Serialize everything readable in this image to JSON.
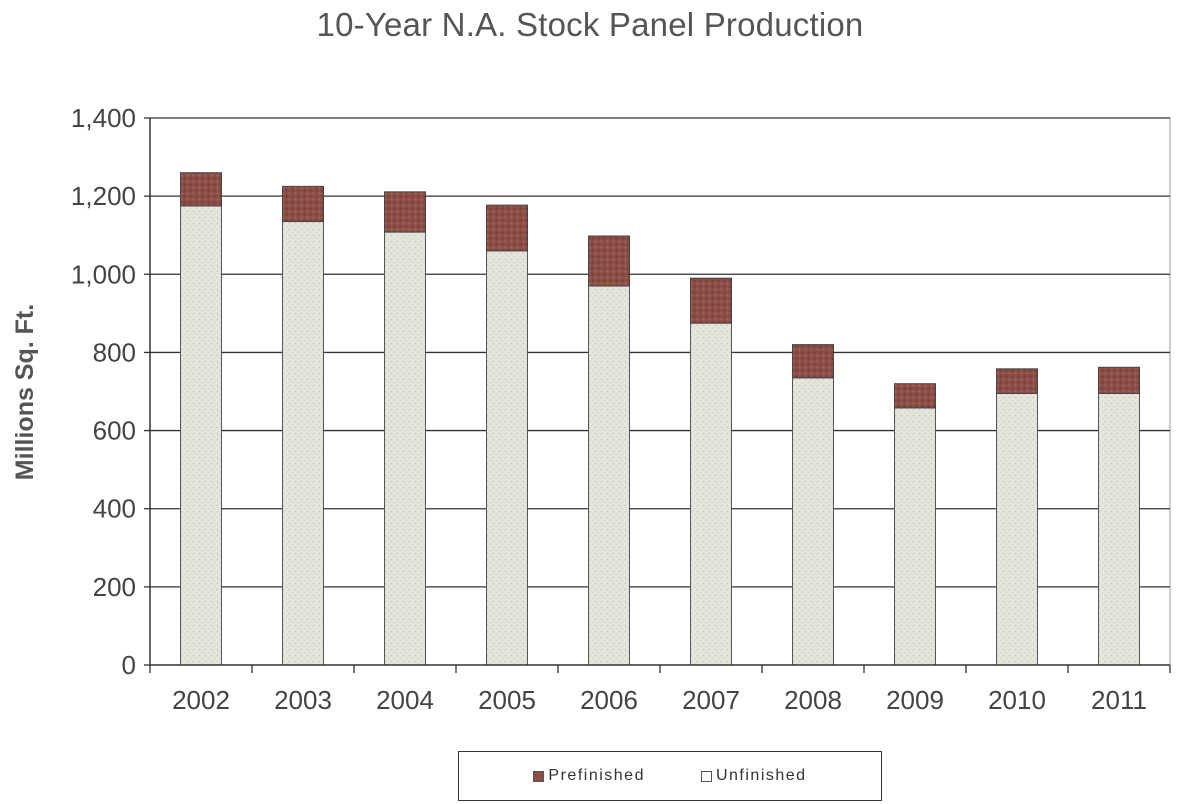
{
  "chart_data": {
    "type": "bar",
    "stacked": true,
    "title": "10-Year N.A. Stock Panel Production",
    "ylabel": "Millions Sq. Ft.",
    "xlabel": "",
    "categories": [
      "2002",
      "2003",
      "2004",
      "2005",
      "2006",
      "2007",
      "2008",
      "2009",
      "2010",
      "2011"
    ],
    "series": [
      {
        "name": "Unfinished",
        "color": "#e6e5dc",
        "values": [
          1175,
          1135,
          1108,
          1060,
          970,
          875,
          735,
          658,
          695,
          695
        ]
      },
      {
        "name": "Prefinished",
        "color": "#8b4d45",
        "values": [
          85,
          90,
          103,
          117,
          128,
          115,
          85,
          62,
          63,
          67
        ]
      }
    ],
    "ylim": [
      0,
      1400
    ],
    "yticks": [
      0,
      200,
      400,
      600,
      800,
      1000,
      1200,
      1400
    ],
    "ytick_labels": [
      "0",
      "200",
      "400",
      "600",
      "800",
      "1,000",
      "1,200",
      "1,400"
    ],
    "grid": true,
    "legend": {
      "position": "bottom",
      "items": [
        {
          "label": "Prefinished",
          "color": "#8b4d45"
        },
        {
          "label": "Unfinished",
          "color": "#e6e5dc"
        }
      ]
    }
  }
}
